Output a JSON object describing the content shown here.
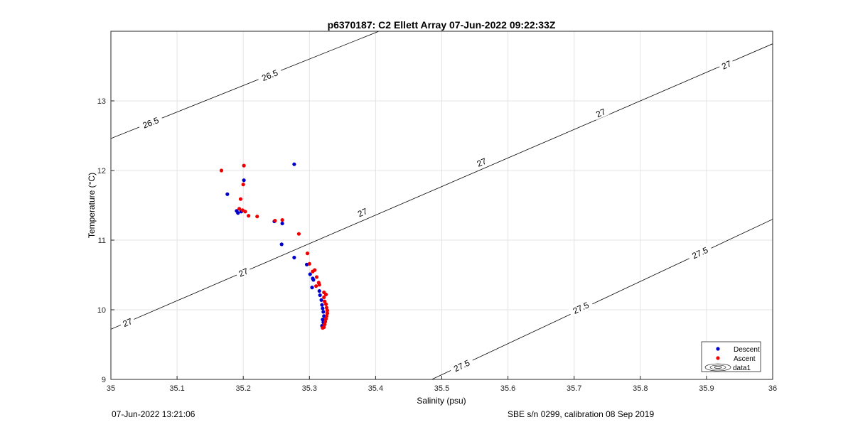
{
  "chart_data": {
    "type": "scatter",
    "title": "p6370187: C2 Ellett Array 07-Jun-2022 09:22:33Z",
    "xlabel": "Salinity (psu)",
    "ylabel": "Temperature (°C)",
    "xlim": [
      35,
      36
    ],
    "ylim": [
      9,
      14
    ],
    "xticks": [
      35,
      35.1,
      35.2,
      35.3,
      35.4,
      35.5,
      35.6,
      35.7,
      35.8,
      35.9,
      36
    ],
    "yticks": [
      9,
      10,
      11,
      12,
      13
    ],
    "grid": true,
    "legend_position": "bottom-right",
    "contours": [
      {
        "label": "26.5",
        "points": [
          [
            35.0,
            12.46
          ],
          [
            35.405,
            14.0
          ]
        ],
        "labels_at": [
          [
            35.06,
            12.69
          ],
          [
            35.24,
            13.37
          ]
        ]
      },
      {
        "label": "27",
        "points": [
          [
            35.0,
            9.72
          ],
          [
            36.0,
            13.82
          ]
        ],
        "labels_at": [
          [
            35.025,
            9.82
          ],
          [
            35.2,
            10.54
          ],
          [
            35.38,
            11.4
          ],
          [
            35.56,
            12.12
          ],
          [
            35.74,
            12.83
          ],
          [
            35.93,
            13.52
          ]
        ]
      },
      {
        "label": "27.5",
        "points": [
          [
            35.485,
            9.0
          ],
          [
            36.0,
            11.3
          ]
        ],
        "labels_at": [
          [
            35.53,
            9.2
          ],
          [
            35.71,
            10.03
          ],
          [
            35.89,
            10.82
          ]
        ]
      }
    ],
    "series": [
      {
        "name": "Descent",
        "color": "#0000cc",
        "points": [
          [
            35.277,
            12.09
          ],
          [
            35.201,
            11.86
          ],
          [
            35.176,
            11.66
          ],
          [
            35.19,
            11.42
          ],
          [
            35.192,
            11.39
          ],
          [
            35.197,
            11.41
          ],
          [
            35.259,
            11.24
          ],
          [
            35.247,
            11.27
          ],
          [
            35.258,
            10.94
          ],
          [
            35.277,
            10.75
          ],
          [
            35.296,
            10.65
          ],
          [
            35.301,
            10.51
          ],
          [
            35.305,
            10.45
          ],
          [
            35.306,
            10.43
          ],
          [
            35.304,
            10.32
          ],
          [
            35.315,
            10.27
          ],
          [
            35.316,
            10.21
          ],
          [
            35.318,
            10.14
          ],
          [
            35.319,
            10.07
          ],
          [
            35.32,
            10.02
          ],
          [
            35.321,
            9.97
          ],
          [
            35.322,
            9.91
          ],
          [
            35.32,
            9.86
          ],
          [
            35.321,
            9.82
          ],
          [
            35.319,
            9.77
          ]
        ]
      },
      {
        "name": "Ascent",
        "color": "#ee0000",
        "points": [
          [
            35.167,
            12.0
          ],
          [
            35.201,
            12.07
          ],
          [
            35.2,
            11.8
          ],
          [
            35.196,
            11.59
          ],
          [
            35.194,
            11.45
          ],
          [
            35.199,
            11.43
          ],
          [
            35.203,
            11.41
          ],
          [
            35.208,
            11.35
          ],
          [
            35.221,
            11.34
          ],
          [
            35.248,
            11.28
          ],
          [
            35.259,
            11.29
          ],
          [
            35.284,
            11.09
          ],
          [
            35.297,
            10.81
          ],
          [
            35.3,
            10.66
          ],
          [
            35.305,
            10.55
          ],
          [
            35.308,
            10.57
          ],
          [
            35.311,
            10.47
          ],
          [
            35.314,
            10.39
          ],
          [
            35.315,
            10.36
          ],
          [
            35.31,
            10.34
          ],
          [
            35.322,
            10.25
          ],
          [
            35.325,
            10.22
          ],
          [
            35.322,
            10.18
          ],
          [
            35.323,
            10.12
          ],
          [
            35.325,
            10.08
          ],
          [
            35.326,
            10.03
          ],
          [
            35.327,
            9.99
          ],
          [
            35.327,
            9.95
          ],
          [
            35.326,
            9.91
          ],
          [
            35.325,
            9.87
          ],
          [
            35.324,
            9.83
          ],
          [
            35.323,
            9.79
          ],
          [
            35.322,
            9.75
          ],
          [
            35.32,
            9.74
          ]
        ]
      }
    ],
    "legend": {
      "entries": [
        "Descent",
        "Ascent",
        "data1"
      ]
    }
  },
  "footer": {
    "left": "07-Jun-2022 13:21:06",
    "right": "SBE s/n 0299, calibration 08 Sep 2019"
  }
}
